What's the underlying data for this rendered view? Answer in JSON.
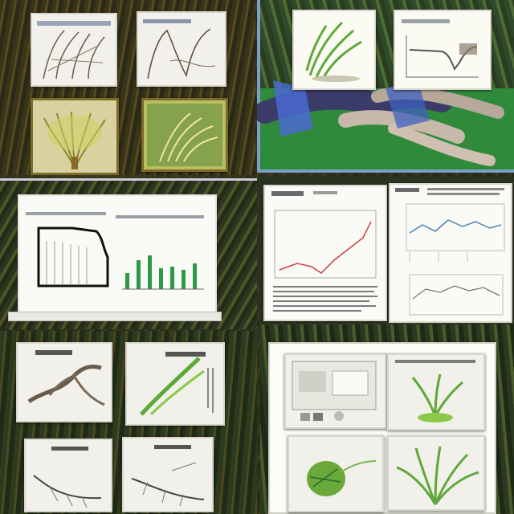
{
  "scene": {
    "colors": {
      "panel_bg": "#f1f0ea",
      "plant_green": "#5fa83a",
      "accent_blue": "#4060c0",
      "chart_red": "#d04040",
      "chart_blue": "#4f7fb3",
      "field_green": "#2f8a3b"
    },
    "icon_names": [
      "plant-illustration-icon",
      "line-chart-icon",
      "bar-chart-icon",
      "root-drawing-icon",
      "leaf-icon"
    ]
  }
}
